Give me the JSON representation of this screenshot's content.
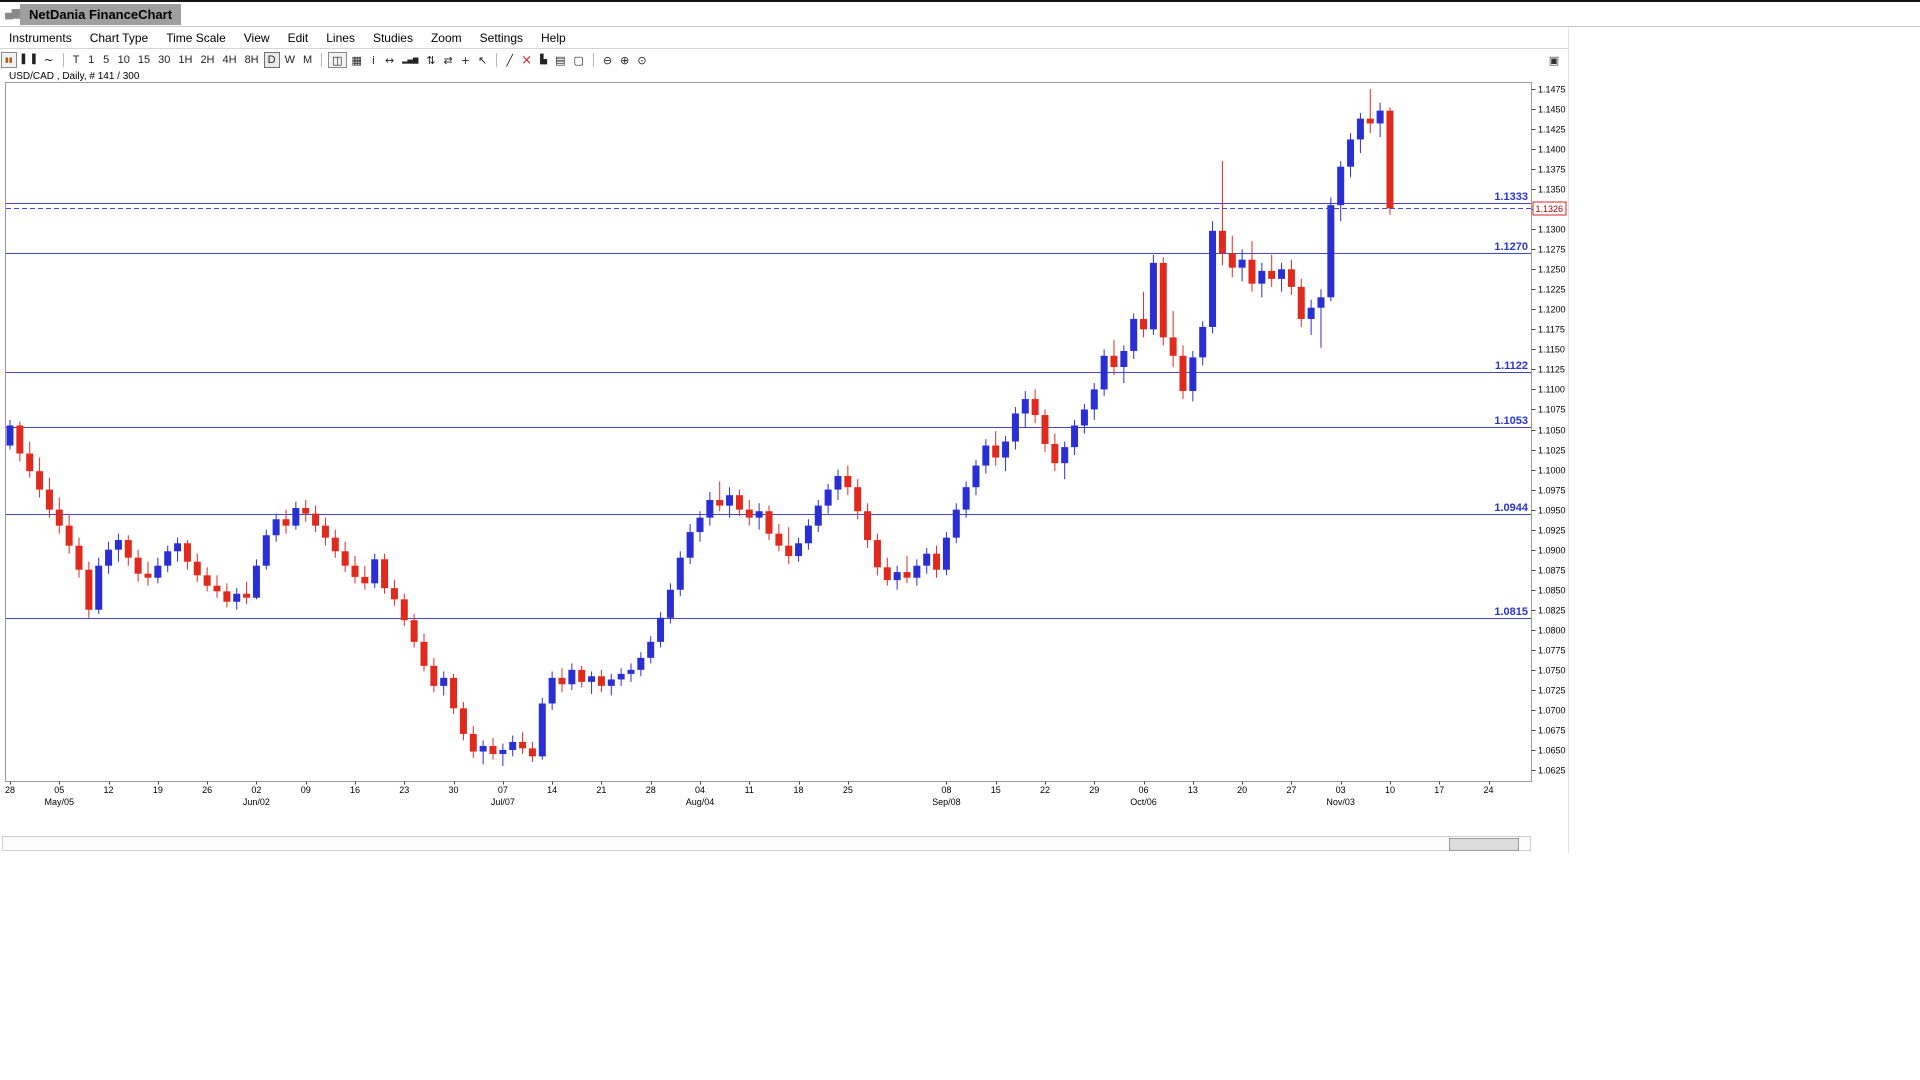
{
  "window": {
    "title": "NetDania FinanceChart"
  },
  "menu": {
    "items": [
      "Instruments",
      "Chart Type",
      "Time Scale",
      "View",
      "Edit",
      "Lines",
      "Studies",
      "Zoom",
      "Settings",
      "Help"
    ]
  },
  "toolbar": {
    "chart_mode": [
      {
        "name": "pause-icon",
        "glyph": "▮▮",
        "color": "#a8641e",
        "size": 7,
        "boxed": true
      },
      {
        "name": "candlestick-mode-icon",
        "glyph": "▌▐",
        "size": 9
      },
      {
        "name": "line-mode-icon",
        "glyph": "~",
        "size": 12
      }
    ],
    "timeframes": [
      "T",
      "1",
      "5",
      "10",
      "15",
      "30",
      "1H",
      "2H",
      "4H",
      "8H",
      "D",
      "W",
      "M"
    ],
    "selected_timeframe": "D",
    "tools": [
      {
        "name": "split-view-icon",
        "glyph": "◫",
        "boxed": true
      },
      {
        "name": "grid-icon",
        "glyph": "▦"
      },
      {
        "name": "info-icon",
        "glyph": "i"
      },
      {
        "name": "pan-icon",
        "glyph": "↔"
      },
      {
        "name": "volume-icon",
        "glyph": "▂▄▆",
        "size": 7
      },
      {
        "name": "study-overlay-icon",
        "glyph": "⇅"
      },
      {
        "name": "compare-icon",
        "glyph": "⇄"
      },
      {
        "name": "crosshair-icon",
        "glyph": "+"
      },
      {
        "name": "cursor-icon",
        "glyph": "↖"
      }
    ],
    "drawing": [
      {
        "name": "trendline-icon",
        "glyph": "╱"
      },
      {
        "name": "delete-drawing-icon",
        "glyph": "×",
        "color": "#d42222",
        "size": 13
      },
      {
        "name": "histogram-icon",
        "glyph": "▙",
        "size": 9
      },
      {
        "name": "print-icon",
        "glyph": "▤"
      },
      {
        "name": "print-preview-icon",
        "glyph": "▢"
      }
    ],
    "zoom": [
      {
        "name": "zoom-out-icon",
        "glyph": "⊖"
      },
      {
        "name": "zoom-in-icon",
        "glyph": "⊕"
      },
      {
        "name": "zoom-reset-icon",
        "glyph": "⊙"
      }
    ],
    "right_icon": {
      "name": "layout-manager-icon",
      "glyph": "▣"
    }
  },
  "colors": {
    "up_candle": "#2a2fd4",
    "down_candle": "#e12a1e",
    "level_line": "#4149c8",
    "level_label": "#2a35d0",
    "current_line": "#4149c8",
    "current_price_box_border": "#dd2222",
    "current_price_text": "#a00000",
    "axis_text": "#000000",
    "title_box_bg": "#9f9f9f"
  },
  "chart_data": {
    "type": "candlestick",
    "title": "USD/CAD , Daily, # 141 / 300",
    "symbol": "USD/CAD",
    "timeframe": "Daily",
    "bar_count_label": "# 141 / 300",
    "grid": false,
    "y_axis": {
      "side": "right",
      "min": 1.0625,
      "max": 1.1475,
      "step": 0.0025
    },
    "x_axis": {
      "day_labels": [
        [
          0,
          "28"
        ],
        [
          5,
          "05"
        ],
        [
          10,
          "12"
        ],
        [
          15,
          "19"
        ],
        [
          20,
          "26"
        ],
        [
          25,
          "02"
        ],
        [
          30,
          "09"
        ],
        [
          35,
          "16"
        ],
        [
          40,
          "23"
        ],
        [
          45,
          "30"
        ],
        [
          50,
          "07"
        ],
        [
          55,
          "14"
        ],
        [
          60,
          "21"
        ],
        [
          65,
          "28"
        ],
        [
          70,
          "04"
        ],
        [
          75,
          "11"
        ],
        [
          80,
          "18"
        ],
        [
          85,
          "25"
        ],
        [
          95,
          "08"
        ],
        [
          100,
          "15"
        ],
        [
          105,
          "22"
        ],
        [
          110,
          "29"
        ],
        [
          115,
          "06"
        ],
        [
          120,
          "13"
        ],
        [
          125,
          "20"
        ],
        [
          130,
          "27"
        ],
        [
          135,
          "03"
        ],
        [
          140,
          "10"
        ],
        [
          145,
          "17"
        ],
        [
          150,
          "24"
        ]
      ],
      "month_labels": [
        [
          5,
          "May/05"
        ],
        [
          25,
          "Jun/02"
        ],
        [
          50,
          "Jul/07"
        ],
        [
          70,
          "Aug/04"
        ],
        [
          95,
          "Sep/08"
        ],
        [
          115,
          "Oct/06"
        ],
        [
          135,
          "Nov/03"
        ]
      ]
    },
    "horizontal_levels": [
      "1.1333",
      "1.1270",
      "1.1122",
      "1.1053",
      "1.0944",
      "1.0815"
    ],
    "current_price": "1.1326",
    "candles": [
      [
        1.103,
        1.1062,
        1.1025,
        1.1055
      ],
      [
        1.1055,
        1.106,
        1.101,
        1.102
      ],
      [
        1.102,
        1.1035,
        1.099,
        1.0998
      ],
      [
        1.0998,
        1.1015,
        1.0965,
        1.0975
      ],
      [
        1.0975,
        1.099,
        1.094,
        1.095
      ],
      [
        1.095,
        1.0965,
        1.092,
        1.093
      ],
      [
        1.093,
        1.0945,
        1.0895,
        1.0905
      ],
      [
        1.0905,
        1.0915,
        1.0865,
        1.0875
      ],
      [
        1.0875,
        1.0885,
        1.0815,
        1.0825
      ],
      [
        1.0825,
        1.089,
        1.082,
        1.088
      ],
      [
        1.088,
        1.091,
        1.087,
        1.09
      ],
      [
        1.09,
        1.092,
        1.0885,
        1.0912
      ],
      [
        1.0912,
        1.0918,
        1.088,
        1.089
      ],
      [
        1.089,
        1.09,
        1.086,
        1.087
      ],
      [
        1.087,
        1.0885,
        1.0855,
        1.0865
      ],
      [
        1.0865,
        1.089,
        1.0858,
        1.088
      ],
      [
        1.088,
        1.0905,
        1.0872,
        1.0898
      ],
      [
        1.0898,
        1.0915,
        1.0885,
        1.0908
      ],
      [
        1.0908,
        1.0912,
        1.0875,
        1.0885
      ],
      [
        1.0885,
        1.0895,
        1.086,
        1.0868
      ],
      [
        1.0868,
        1.0878,
        1.0848,
        1.0855
      ],
      [
        1.0855,
        1.0868,
        1.084,
        1.0848
      ],
      [
        1.0848,
        1.0858,
        1.0828,
        1.0835
      ],
      [
        1.0835,
        1.0852,
        1.0825,
        1.0845
      ],
      [
        1.0845,
        1.086,
        1.0832,
        1.084
      ],
      [
        1.084,
        1.0888,
        1.0838,
        1.088
      ],
      [
        1.088,
        1.0925,
        1.0875,
        1.0918
      ],
      [
        1.0918,
        1.0945,
        1.091,
        1.0938
      ],
      [
        1.0938,
        1.095,
        1.092,
        1.093
      ],
      [
        1.093,
        1.096,
        1.0925,
        1.0952
      ],
      [
        1.0952,
        1.0962,
        1.0935,
        1.0945
      ],
      [
        1.0945,
        1.0955,
        1.0922,
        1.093
      ],
      [
        1.093,
        1.094,
        1.0905,
        1.0915
      ],
      [
        1.0915,
        1.0925,
        1.089,
        1.0898
      ],
      [
        1.0898,
        1.091,
        1.0872,
        1.088
      ],
      [
        1.088,
        1.0892,
        1.0858,
        1.0866
      ],
      [
        1.0866,
        1.088,
        1.085,
        1.0858
      ],
      [
        1.0858,
        1.0895,
        1.0852,
        1.0888
      ],
      [
        1.0888,
        1.0895,
        1.0845,
        1.0852
      ],
      [
        1.0852,
        1.0862,
        1.083,
        1.0838
      ],
      [
        1.0838,
        1.0845,
        1.0805,
        1.0812
      ],
      [
        1.0812,
        1.082,
        1.0778,
        1.0785
      ],
      [
        1.0785,
        1.0795,
        1.0748,
        1.0755
      ],
      [
        1.0755,
        1.0765,
        1.0722,
        1.073
      ],
      [
        1.073,
        1.0748,
        1.0718,
        1.074
      ],
      [
        1.074,
        1.0745,
        1.0695,
        1.0702
      ],
      [
        1.0702,
        1.071,
        1.0662,
        1.067
      ],
      [
        1.067,
        1.068,
        1.064,
        1.0648
      ],
      [
        1.0648,
        1.0662,
        1.0632,
        1.0655
      ],
      [
        1.0655,
        1.0665,
        1.0638,
        1.0645
      ],
      [
        1.0645,
        1.0658,
        1.063,
        1.065
      ],
      [
        1.065,
        1.0668,
        1.0642,
        1.066
      ],
      [
        1.066,
        1.0672,
        1.0645,
        1.0652
      ],
      [
        1.0652,
        1.066,
        1.0635,
        1.0642
      ],
      [
        1.0642,
        1.0715,
        1.0638,
        1.0708
      ],
      [
        1.0708,
        1.0748,
        1.07,
        1.074
      ],
      [
        1.074,
        1.0752,
        1.0722,
        1.0732
      ],
      [
        1.0732,
        1.0758,
        1.0725,
        1.075
      ],
      [
        1.075,
        1.0755,
        1.0728,
        1.0735
      ],
      [
        1.0735,
        1.0748,
        1.072,
        1.0742
      ],
      [
        1.0742,
        1.075,
        1.0722,
        1.073
      ],
      [
        1.073,
        1.0745,
        1.0718,
        1.0738
      ],
      [
        1.0738,
        1.0752,
        1.073,
        1.0745
      ],
      [
        1.0745,
        1.0758,
        1.0735,
        1.075
      ],
      [
        1.075,
        1.0772,
        1.0742,
        1.0765
      ],
      [
        1.0765,
        1.0792,
        1.0758,
        1.0785
      ],
      [
        1.0785,
        1.0822,
        1.0778,
        1.0815
      ],
      [
        1.0815,
        1.0858,
        1.0808,
        1.085
      ],
      [
        1.085,
        1.0898,
        1.0842,
        1.089
      ],
      [
        1.089,
        1.0932,
        1.0882,
        1.0922
      ],
      [
        1.0922,
        1.0948,
        1.091,
        1.094
      ],
      [
        1.094,
        1.0972,
        1.093,
        1.0962
      ],
      [
        1.0962,
        1.0985,
        1.0948,
        1.0955
      ],
      [
        1.0955,
        1.0978,
        1.094,
        1.0968
      ],
      [
        1.0968,
        1.0975,
        1.0942,
        1.095
      ],
      [
        1.095,
        1.0962,
        1.093,
        1.094
      ],
      [
        1.094,
        1.0958,
        1.0925,
        1.0948
      ],
      [
        1.0948,
        1.0955,
        1.0912,
        1.092
      ],
      [
        1.092,
        1.0932,
        1.0898,
        1.0905
      ],
      [
        1.0905,
        1.0928,
        1.0882,
        1.0892
      ],
      [
        1.0892,
        1.0915,
        1.0885,
        1.0908
      ],
      [
        1.0908,
        1.0938,
        1.09,
        1.093
      ],
      [
        1.093,
        1.0962,
        1.0922,
        1.0955
      ],
      [
        1.0955,
        1.0982,
        1.0945,
        1.0975
      ],
      [
        1.0975,
        1.1,
        1.0962,
        1.0992
      ],
      [
        1.0992,
        1.1005,
        1.0968,
        1.0978
      ],
      [
        1.0978,
        1.0988,
        1.0938,
        1.0948
      ],
      [
        1.0948,
        1.0958,
        1.0902,
        1.0912
      ],
      [
        1.0912,
        1.092,
        1.0868,
        1.0878
      ],
      [
        1.0878,
        1.089,
        1.0855,
        1.0862
      ],
      [
        1.0862,
        1.088,
        1.085,
        1.0872
      ],
      [
        1.0872,
        1.0892,
        1.0858,
        1.0865
      ],
      [
        1.0865,
        1.0888,
        1.0855,
        1.088
      ],
      [
        1.088,
        1.0902,
        1.087,
        1.0895
      ],
      [
        1.0895,
        1.0905,
        1.0865,
        1.0875
      ],
      [
        1.0875,
        1.0922,
        1.0868,
        1.0915
      ],
      [
        1.0915,
        1.0958,
        1.0908,
        1.095
      ],
      [
        1.095,
        1.0985,
        1.094,
        1.0978
      ],
      [
        1.0978,
        1.1012,
        1.0968,
        1.1005
      ],
      [
        1.1005,
        1.1038,
        1.0995,
        1.103
      ],
      [
        1.103,
        1.1048,
        1.1005,
        1.1015
      ],
      [
        1.1015,
        1.1042,
        1.0998,
        1.1035
      ],
      [
        1.1035,
        1.1078,
        1.1025,
        1.107
      ],
      [
        1.107,
        1.1098,
        1.1052,
        1.1088
      ],
      [
        1.1088,
        1.11,
        1.1058,
        1.1068
      ],
      [
        1.1068,
        1.1075,
        1.1022,
        1.1032
      ],
      [
        1.1032,
        1.1045,
        1.0998,
        1.1008
      ],
      [
        1.1008,
        1.1035,
        1.0988,
        1.1028
      ],
      [
        1.1028,
        1.1062,
        1.1018,
        1.1055
      ],
      [
        1.1055,
        1.1082,
        1.1045,
        1.1075
      ],
      [
        1.1075,
        1.1108,
        1.1062,
        1.11
      ],
      [
        1.11,
        1.115,
        1.1092,
        1.1142
      ],
      [
        1.1142,
        1.1162,
        1.1118,
        1.1128
      ],
      [
        1.1128,
        1.1155,
        1.1108,
        1.1148
      ],
      [
        1.1148,
        1.1195,
        1.1138,
        1.1188
      ],
      [
        1.1188,
        1.1222,
        1.1165,
        1.1175
      ],
      [
        1.1175,
        1.1268,
        1.1168,
        1.1258
      ],
      [
        1.1258,
        1.1265,
        1.1155,
        1.1165
      ],
      [
        1.1165,
        1.1198,
        1.1128,
        1.1142
      ],
      [
        1.1142,
        1.1155,
        1.1088,
        1.1098
      ],
      [
        1.1098,
        1.1148,
        1.1085,
        1.114
      ],
      [
        1.114,
        1.1185,
        1.113,
        1.1178
      ],
      [
        1.1178,
        1.131,
        1.117,
        1.1298
      ],
      [
        1.1298,
        1.1385,
        1.1255,
        1.127
      ],
      [
        1.127,
        1.1292,
        1.124,
        1.1252
      ],
      [
        1.1252,
        1.1275,
        1.1235,
        1.1262
      ],
      [
        1.1262,
        1.1285,
        1.1222,
        1.1232
      ],
      [
        1.1232,
        1.1258,
        1.1215,
        1.1248
      ],
      [
        1.1248,
        1.1268,
        1.1228,
        1.1238
      ],
      [
        1.1238,
        1.1258,
        1.1222,
        1.125
      ],
      [
        1.125,
        1.1262,
        1.1218,
        1.1228
      ],
      [
        1.1228,
        1.1238,
        1.1178,
        1.1188
      ],
      [
        1.1188,
        1.1212,
        1.1168,
        1.1202
      ],
      [
        1.1202,
        1.1225,
        1.1152,
        1.1215
      ],
      [
        1.1215,
        1.134,
        1.121,
        1.133
      ],
      [
        1.133,
        1.1385,
        1.131,
        1.1378
      ],
      [
        1.1378,
        1.142,
        1.1365,
        1.1412
      ],
      [
        1.1412,
        1.1445,
        1.1395,
        1.1438
      ],
      [
        1.1438,
        1.1475,
        1.142,
        1.1432
      ],
      [
        1.1432,
        1.1458,
        1.1415,
        1.1448
      ],
      [
        1.1448,
        1.1452,
        1.1318,
        1.1326
      ]
    ]
  }
}
